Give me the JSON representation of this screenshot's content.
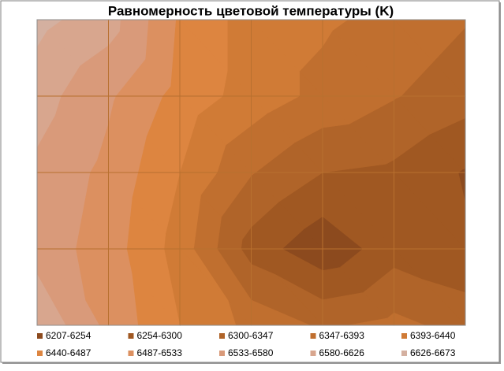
{
  "chart_data": {
    "type": "contour",
    "title": "Равномерность цветовой температуры (K)",
    "z": [
      [
        6640,
        6600,
        6480,
        6420,
        6400,
        6380,
        6350
      ],
      [
        6600,
        6540,
        6470,
        6420,
        6380,
        6350,
        6320
      ],
      [
        6570,
        6520,
        6440,
        6350,
        6300,
        6290,
        6250
      ],
      [
        6560,
        6510,
        6420,
        6280,
        6220,
        6280,
        6260
      ],
      [
        6620,
        6520,
        6440,
        6380,
        6340,
        6360,
        6330
      ]
    ],
    "levels": [
      6207,
      6254,
      6300,
      6347,
      6393,
      6440,
      6487,
      6533,
      6580,
      6626,
      6673
    ],
    "series": [
      {
        "name": "6207-6254",
        "color": "#8c4a1e"
      },
      {
        "name": "6254-6300",
        "color": "#a05822"
      },
      {
        "name": "6300-6347",
        "color": "#b06429"
      },
      {
        "name": "6347-6393",
        "color": "#c06f2f"
      },
      {
        "name": "6393-6440",
        "color": "#d07b36"
      },
      {
        "name": "6440-6487",
        "color": "#dd8540"
      },
      {
        "name": "6487-6533",
        "color": "#dc9060"
      },
      {
        "name": "6533-6580",
        "color": "#d99a7a"
      },
      {
        "name": "6580-6626",
        "color": "#d8a68e"
      },
      {
        "name": "6626-6673",
        "color": "#d4b0a0"
      }
    ]
  }
}
